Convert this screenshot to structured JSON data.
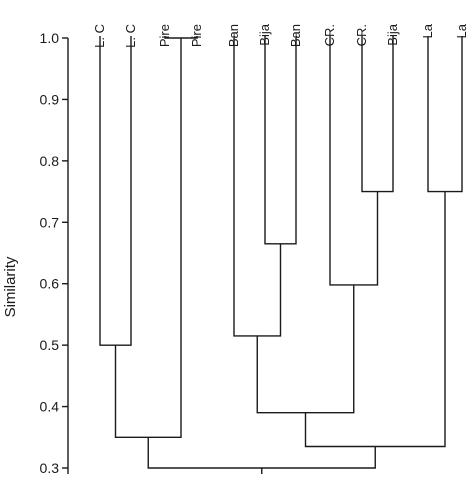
{
  "chart_data": {
    "type": "dendrogram",
    "ylabel": "Similarity",
    "ylim": [
      0.3,
      1.0
    ],
    "yticks": [
      "1.0",
      "0.9",
      "0.8",
      "0.7",
      "0.6",
      "0.5",
      "0.4",
      "0.3"
    ],
    "leaves": [
      "L. C",
      "L. C",
      "Pire",
      "Pire",
      "Ban",
      "Bija",
      "Ban",
      "CR.",
      "CR.",
      "Bija",
      "La",
      "La"
    ],
    "merges": [
      {
        "left": "leaf:0",
        "right": "leaf:1",
        "similarity": 0.5
      },
      {
        "left": "leaf:2",
        "right": "leaf:3",
        "similarity": 1.0
      },
      {
        "left": "leaf:5",
        "right": "leaf:6",
        "similarity": 0.665
      },
      {
        "left": "leaf:8",
        "right": "leaf:9",
        "similarity": 0.75
      },
      {
        "left": "leaf:10",
        "right": "leaf:11",
        "similarity": 0.75
      },
      {
        "left": "merge:0",
        "right": "merge:1",
        "similarity": 0.35
      },
      {
        "left": "leaf:4",
        "right": "merge:2",
        "similarity": 0.515
      },
      {
        "left": "leaf:7",
        "right": "merge:3",
        "similarity": 0.598
      },
      {
        "left": "merge:6",
        "right": "merge:7",
        "similarity": 0.39
      },
      {
        "left": "merge:8",
        "right": "merge:4",
        "similarity": 0.335
      },
      {
        "left": "merge:5",
        "right": "merge:9",
        "similarity": 0.3
      }
    ]
  }
}
